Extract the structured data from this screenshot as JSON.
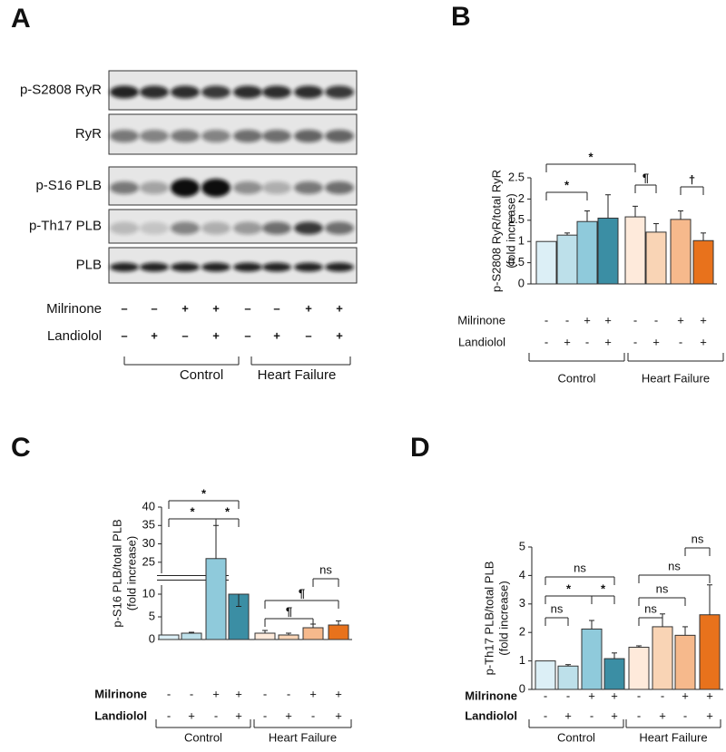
{
  "panel_a": {
    "label": "A",
    "rows": [
      "p-S2808 RyR",
      "RyR",
      "p-S16 PLB",
      "p-Th17 PLB",
      "PLB"
    ],
    "conditions": [
      {
        "name": "Milrinone",
        "signs": [
          "–",
          "–",
          "+",
          "+",
          "–",
          "–",
          "+",
          "+"
        ]
      },
      {
        "name": "Landiolol",
        "signs": [
          "–",
          "+",
          "–",
          "+",
          "–",
          "+",
          "–",
          "+"
        ]
      }
    ],
    "groups": [
      "Control",
      "Heart Failure"
    ]
  },
  "chart_data": [
    {
      "type": "bar",
      "label": "B",
      "ylabel": "p-S2808 RyR/total RyR",
      "ylabel_note": "(fold increase)",
      "ylim": [
        0,
        2.5
      ],
      "yticks": [
        0,
        0.5,
        1,
        1.5,
        2,
        2.5
      ],
      "values": [
        1.0,
        1.15,
        1.47,
        1.55,
        1.58,
        1.22,
        1.52,
        1.02
      ],
      "errors": [
        null,
        0.05,
        0.25,
        0.55,
        0.25,
        0.2,
        0.2,
        0.18
      ],
      "colors": [
        "#dceff6",
        "#bde0ea",
        "#8fcadb",
        "#3b8ea4",
        "#feeadb",
        "#f9d4b5",
        "#f6b98c",
        "#e8721c"
      ],
      "annotations": [
        "*",
        "*",
        "¶",
        "†"
      ],
      "conditions": [
        {
          "name": "Milrinone",
          "signs": [
            "-",
            "-",
            "+",
            "+",
            "-",
            "-",
            "+",
            "+"
          ]
        },
        {
          "name": "Landiolol",
          "signs": [
            "-",
            "+",
            "-",
            "+",
            "-",
            "+",
            "-",
            "+"
          ]
        }
      ],
      "groups": [
        "Control",
        "Heart Failure"
      ]
    },
    {
      "type": "bar",
      "label": "C",
      "ylabel": "p-S16 PLB/total PLB",
      "ylabel_note": "(fold increase)",
      "ylim": [
        0,
        40
      ],
      "axis_break": [
        12,
        22
      ],
      "yticks": [
        0,
        5,
        10,
        25,
        30,
        35,
        40
      ],
      "values": [
        1.0,
        1.4,
        26,
        10,
        1.4,
        1.0,
        2.6,
        3.2
      ],
      "errors": [
        null,
        0.2,
        9,
        3,
        0.6,
        0.4,
        0.8,
        0.9
      ],
      "colors": [
        "#dceff6",
        "#bde0ea",
        "#8fcadb",
        "#3b8ea4",
        "#feeadb",
        "#f9d4b5",
        "#f6b98c",
        "#e8721c"
      ],
      "annotations": [
        "*",
        "*",
        "*",
        "ns",
        "¶",
        "¶"
      ],
      "conditions": [
        {
          "name": "Milrinone",
          "signs": [
            "-",
            "-",
            "+",
            "+",
            "-",
            "-",
            "+",
            "+"
          ]
        },
        {
          "name": "Landiolol",
          "signs": [
            "-",
            "+",
            "-",
            "+",
            "-",
            "+",
            "-",
            "+"
          ]
        }
      ],
      "groups": [
        "Control",
        "Heart Failure"
      ]
    },
    {
      "type": "bar",
      "label": "D",
      "ylabel": "p-Th17 PLB/total PLB",
      "ylabel_note": "(fold increase)",
      "ylim": [
        0,
        5
      ],
      "yticks": [
        0,
        1,
        2,
        3,
        4,
        5
      ],
      "values": [
        1.0,
        0.82,
        2.12,
        1.08,
        1.48,
        2.2,
        1.9,
        2.62
      ],
      "errors": [
        null,
        0.05,
        0.3,
        0.2,
        0.05,
        0.45,
        0.3,
        1.05
      ],
      "colors": [
        "#dceff6",
        "#bde0ea",
        "#8fcadb",
        "#3b8ea4",
        "#feeadb",
        "#f9d4b5",
        "#f6b98c",
        "#e8721c"
      ],
      "annotations": [
        "ns",
        "*",
        "*",
        "ns",
        "ns",
        "ns",
        "ns",
        "ns"
      ],
      "conditions": [
        {
          "name": "Milrinone",
          "signs": [
            "-",
            "-",
            "+",
            "+",
            "-",
            "-",
            "+",
            "+"
          ]
        },
        {
          "name": "Landiolol",
          "signs": [
            "-",
            "+",
            "-",
            "+",
            "-",
            "+",
            "-",
            "+"
          ]
        }
      ],
      "groups": [
        "Control",
        "Heart Failure"
      ]
    }
  ]
}
